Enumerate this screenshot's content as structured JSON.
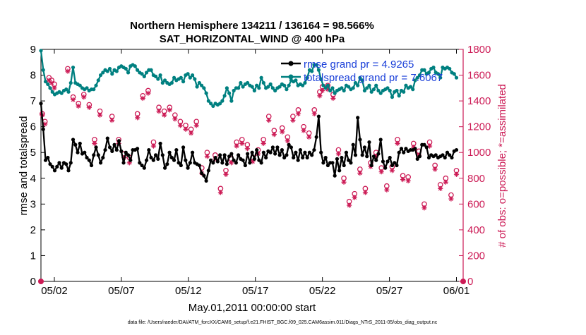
{
  "chart_data": {
    "type": "line",
    "title_line1": "Northern Hemisphere 134211 / 136164 = 98.566%",
    "title_line2": "SAT_HORIZONTAL_WIND @ 400 hPa",
    "xlabel": "May.01,2011 00:00:00 start",
    "ylabel_left": "rmse and totalspread",
    "ylabel_right": "# of obs: o=possible; *=assimilated",
    "footnote": "data file: /Users/raeder/DAI/ATM_forcXX/CAM6_setup/f.e21.FHIST_BGC.f09_025.CAM6assim.011/Diags_NTrS_2011-05/obs_diag_output.nc",
    "xlim": [
      0,
      31.5
    ],
    "x_ticks": [
      1,
      6,
      11,
      16,
      21,
      26,
      31
    ],
    "x_tick_labels": [
      "05/02",
      "05/07",
      "05/12",
      "05/17",
      "05/22",
      "05/27",
      "06/01"
    ],
    "ylim_left": [
      0,
      9
    ],
    "y_ticks_left": [
      "0",
      "1",
      "2",
      "3",
      "4",
      "5",
      "6",
      "7",
      "8",
      "9"
    ],
    "ylim_right": [
      0,
      1800
    ],
    "y_ticks_right": [
      "0",
      "200",
      "400",
      "600",
      "800",
      "1000",
      "1200",
      "1400",
      "1600",
      "1800"
    ],
    "grid": false,
    "legend_position": "top-right",
    "colors": {
      "rmse": "#000000",
      "totalspread": "#008080",
      "obs": "#cc1a55",
      "axis_right": "#cc1a55",
      "legend_text": "#1a3fd9"
    },
    "series": [
      {
        "name": "rmse grand pr = 4.9265",
        "axis": "left",
        "values": [
          6.9,
          5.9,
          4.7,
          4.8,
          4.55,
          4.45,
          4.3,
          4.45,
          4.6,
          4.4,
          4.6,
          4.55,
          4.3,
          4.6,
          5.5,
          5.3,
          5.0,
          5.35,
          4.95,
          5.0,
          4.8,
          4.7,
          4.5,
          4.9,
          5.2,
          4.9,
          4.6,
          4.8,
          5.1,
          5.55,
          5.2,
          5.05,
          5.3,
          5.1,
          5.45,
          5.05,
          4.6,
          5.0,
          4.9,
          4.7,
          5.1,
          5.1,
          5.15,
          4.6,
          4.5,
          4.4,
          4.7,
          5.1,
          4.8,
          4.7,
          4.9,
          4.75,
          5.35,
          4.9,
          4.4,
          4.55,
          5.0,
          4.8,
          4.7,
          5.1,
          4.6,
          4.5,
          5.2,
          4.7,
          4.4,
          4.6,
          5.0,
          4.6,
          4.55,
          4.5,
          4.2,
          4.1,
          3.9,
          4.3,
          4.7,
          4.6,
          4.8,
          4.65,
          4.9,
          4.6,
          4.9,
          4.55,
          4.85,
          4.95,
          4.7,
          4.6,
          4.9,
          4.75,
          4.7,
          4.5,
          4.95,
          4.6,
          5.0,
          4.75,
          5.1,
          4.7,
          4.6,
          5.0,
          4.8,
          5.05,
          5.0,
          5.2,
          4.95,
          5.2,
          4.9,
          5.1,
          4.8,
          4.9,
          5.3,
          5.2,
          4.8,
          5.0,
          4.7,
          5.1,
          4.8,
          5.0,
          4.8,
          5.0,
          4.9,
          5.1,
          5.6,
          6.4,
          5.0,
          4.6,
          4.8,
          4.5,
          4.6,
          4.6,
          4.1,
          4.75,
          4.3,
          4.8,
          4.5,
          5.0,
          4.7,
          4.6,
          5.3,
          4.9,
          6.35,
          5.5,
          4.9,
          5.2,
          4.85,
          5.4,
          4.5,
          4.85,
          4.7,
          4.95,
          5.5,
          4.65,
          4.4,
          4.65,
          4.8,
          4.5,
          4.6,
          4.5,
          5.0,
          5.15,
          5.0,
          5.15,
          5.05,
          5.1,
          5.1,
          5.15,
          4.75,
          4.85,
          5.3,
          5.3,
          5.2,
          4.8,
          4.9,
          4.85,
          4.9,
          4.8,
          4.85,
          4.9,
          4.8,
          5.0,
          4.9,
          4.8,
          5.05,
          5.1
        ]
      },
      {
        "name": "totalspread grand pr = 7.6067",
        "axis": "left",
        "values": [
          8.95,
          8.2,
          7.75,
          7.65,
          7.5,
          7.35,
          7.25,
          7.3,
          7.35,
          7.3,
          7.4,
          7.45,
          7.35,
          7.7,
          8.3,
          7.7,
          7.65,
          7.6,
          7.5,
          7.45,
          7.5,
          7.4,
          7.45,
          7.45,
          7.6,
          7.8,
          8.0,
          8.1,
          8.2,
          8.15,
          8.25,
          8.05,
          8.2,
          8.15,
          8.3,
          8.35,
          8.3,
          8.25,
          8.1,
          8.35,
          8.4,
          8.35,
          8.2,
          8.1,
          8.05,
          7.95,
          8.1,
          8.2,
          8.2,
          8.0,
          7.95,
          7.85,
          8.0,
          7.7,
          7.8,
          7.7,
          7.65,
          7.7,
          7.9,
          7.8,
          7.85,
          7.9,
          7.75,
          8.0,
          8.05,
          7.9,
          8.0,
          7.85,
          7.55,
          7.7,
          7.6,
          7.5,
          7.3,
          7.0,
          6.9,
          6.8,
          6.9,
          6.85,
          6.9,
          7.0,
          7.2,
          7.5,
          7.3,
          7.0,
          7.4,
          7.5,
          7.5,
          7.7,
          7.55,
          7.65,
          7.7,
          7.6,
          7.55,
          7.4,
          7.6,
          7.5,
          7.9,
          7.7,
          7.5,
          7.55,
          7.65,
          7.5,
          7.4,
          7.5,
          7.55,
          7.65,
          7.6,
          7.45,
          7.6,
          7.8,
          7.75,
          7.8,
          7.6,
          7.65,
          7.6,
          7.7,
          7.9,
          8.2,
          8.15,
          8.4,
          8.4,
          8.2,
          7.85,
          7.6,
          7.5,
          7.6,
          7.4,
          7.5,
          7.3,
          7.4,
          7.45,
          7.5,
          7.4,
          7.6,
          7.55,
          7.45,
          7.5,
          7.7,
          7.6,
          7.9,
          7.8,
          7.4,
          7.5,
          7.6,
          7.35,
          7.45,
          7.6,
          7.4,
          7.3,
          7.4,
          7.45,
          7.5,
          7.4,
          7.15,
          7.35,
          7.4,
          7.2,
          7.4,
          7.35,
          7.6,
          7.5,
          7.55,
          7.45,
          7.8,
          7.9,
          8.0,
          8.2,
          8.2,
          8.05,
          8.1,
          8.25,
          8.3,
          8.1,
          8.05,
          7.9,
          8.3,
          8.25,
          8.3,
          8.25,
          8.1,
          8.05,
          7.9
        ]
      },
      {
        "name": "obs possible",
        "axis": "right",
        "marker": "o",
        "x": [
          0.1,
          0.3,
          0.6,
          0.8,
          1.0,
          2.0,
          2.4,
          2.8,
          3.2,
          3.6,
          4.0,
          4.4,
          5.3,
          5.8,
          6.2,
          6.6,
          7.2,
          7.6,
          8.0,
          8.4,
          8.8,
          9.2,
          9.6,
          10.0,
          10.4,
          10.8,
          11.2,
          11.6,
          12.0,
          12.4,
          13.0,
          13.4,
          13.8,
          14.2,
          14.6,
          15.0,
          15.4,
          15.8,
          16.2,
          16.6,
          17.0,
          17.4,
          18.0,
          18.4,
          18.8,
          19.2,
          19.6,
          20.0,
          20.4,
          20.8,
          21.0,
          21.4,
          21.8,
          22.2,
          22.6,
          23.0,
          23.4,
          23.8,
          24.2,
          24.6,
          25.0,
          25.4,
          25.8,
          26.2,
          26.6,
          27.0,
          27.4,
          27.8,
          28.2,
          28.6,
          29.0,
          29.4,
          29.8,
          30.2,
          30.6,
          31.0
        ],
        "values": [
          1300,
          1240,
          1580,
          1560,
          1530,
          1650,
          1430,
          1380,
          1450,
          1370,
          1100,
          1320,
          1280,
          1100,
          990,
          960,
          1300,
          1440,
          1480,
          1080,
          1350,
          1320,
          1350,
          1290,
          1240,
          1210,
          1180,
          1240,
          880,
          1000,
          980,
          720,
          860,
          950,
          1080,
          1100,
          1060,
          960,
          1020,
          1100,
          1280,
          1170,
          1190,
          1120,
          1280,
          1330,
          1200,
          1150,
          1330,
          1470,
          1510,
          1520,
          1450,
          1020,
          800,
          620,
          680,
          870,
          720,
          920,
          1000,
          880,
          740,
          890,
          1100,
          820,
          810,
          1070,
          1010,
          600,
          1080,
          900,
          750,
          800,
          670,
          860
        ]
      },
      {
        "name": "obs assimilated",
        "axis": "right",
        "marker": "*",
        "x": [
          0.1,
          0.3,
          0.6,
          0.8,
          1.0,
          2.0,
          2.4,
          2.8,
          3.2,
          3.6,
          4.0,
          4.4,
          5.3,
          5.8,
          6.2,
          6.6,
          7.2,
          7.6,
          8.0,
          8.4,
          8.8,
          9.2,
          9.6,
          10.0,
          10.4,
          10.8,
          11.2,
          11.6,
          12.0,
          12.4,
          13.0,
          13.4,
          13.8,
          14.2,
          14.6,
          15.0,
          15.4,
          15.8,
          16.2,
          16.6,
          17.0,
          17.4,
          18.0,
          18.4,
          18.8,
          19.2,
          19.6,
          20.0,
          20.4,
          20.8,
          21.0,
          21.4,
          21.8,
          22.2,
          22.6,
          23.0,
          23.4,
          23.8,
          24.2,
          24.6,
          25.0,
          25.4,
          25.8,
          26.2,
          26.6,
          27.0,
          27.4,
          27.8,
          28.2,
          28.6,
          29.0,
          29.4,
          29.8,
          30.2,
          30.6,
          31.0
        ],
        "values": [
          1290,
          1220,
          1560,
          1540,
          1500,
          1630,
          1410,
          1360,
          1430,
          1350,
          1070,
          1290,
          1250,
          1070,
          960,
          920,
          1270,
          1420,
          1460,
          1050,
          1320,
          1290,
          1330,
          1260,
          1210,
          1180,
          1150,
          1210,
          840,
          970,
          950,
          690,
          830,
          920,
          1050,
          1070,
          1030,
          930,
          990,
          1070,
          1250,
          1140,
          1160,
          1090,
          1250,
          1300,
          1170,
          1120,
          1300,
          1440,
          1480,
          1490,
          1420,
          990,
          770,
          590,
          650,
          840,
          690,
          890,
          970,
          850,
          710,
          860,
          1070,
          790,
          780,
          1040,
          980,
          570,
          1050,
          870,
          720,
          770,
          640,
          830
        ]
      }
    ],
    "legend": [
      {
        "label": "rmse grand pr = 4.9265",
        "color": "#000000"
      },
      {
        "label": "totalspread grand pr = 7.6067",
        "color": "#008080"
      }
    ]
  }
}
